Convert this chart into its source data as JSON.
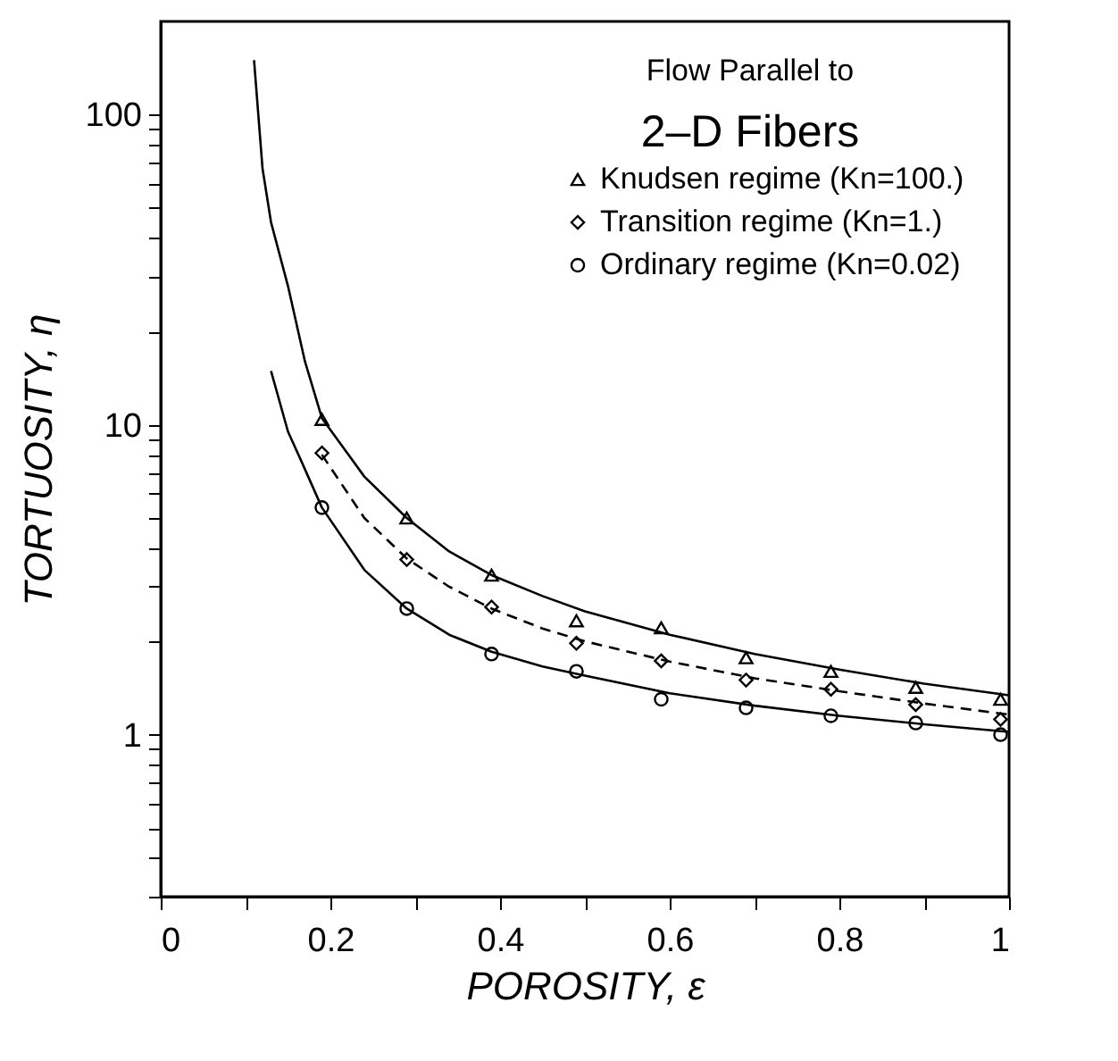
{
  "chart_data": {
    "type": "scatter",
    "title": "Flow Parallel to",
    "subtitle": "2–D Fibers",
    "xlabel": "POROSITY, ε",
    "ylabel": "TORTUOSITY, η",
    "log": "y",
    "grid": false,
    "legend": "top right",
    "xlim": [
      0,
      1
    ],
    "ylim": [
      0.3,
      200
    ],
    "xticks": [
      0,
      {
        "value": 0.1,
        "label": null
      },
      0.2,
      {
        "value": 0.3,
        "label": null
      },
      0.4,
      {
        "value": 0.5,
        "label": null
      },
      0.6,
      {
        "value": 0.7,
        "label": null
      },
      0.8,
      {
        "value": 0.9,
        "label": null
      },
      1
    ],
    "yticks": [
      {
        "value": 0.3,
        "label": null
      },
      {
        "value": 0.4,
        "label": null
      },
      {
        "value": 0.5,
        "label": null
      },
      {
        "value": 0.6,
        "label": null
      },
      {
        "value": 0.7,
        "label": null
      },
      {
        "value": 0.8,
        "label": null
      },
      {
        "value": 0.9,
        "label": null
      },
      1,
      {
        "value": 2,
        "label": null
      },
      {
        "value": 3,
        "label": null
      },
      {
        "value": 4,
        "label": null
      },
      {
        "value": 5,
        "label": null
      },
      {
        "value": 6,
        "label": null
      },
      {
        "value": 7,
        "label": null
      },
      {
        "value": 8,
        "label": null
      },
      {
        "value": 9,
        "label": null
      },
      10,
      {
        "value": 20,
        "label": null
      },
      {
        "value": 30,
        "label": null
      },
      {
        "value": 40,
        "label": null
      },
      {
        "value": 50,
        "label": null
      },
      {
        "value": 60,
        "label": null
      },
      {
        "value": 70,
        "label": null
      },
      {
        "value": 80,
        "label": null
      },
      {
        "value": 90,
        "label": null
      },
      100
    ],
    "series": [
      {
        "name": "Knudsen regime (Kn=100.)",
        "type": "scatter",
        "marker": "triangle",
        "color": "#000000",
        "x": [
          0.19,
          0.29,
          0.39,
          0.49,
          0.59,
          0.69,
          0.79,
          0.89,
          0.99
        ],
        "values": [
          10.4,
          5.0,
          3.27,
          2.33,
          2.21,
          1.77,
          1.6,
          1.42,
          1.3
        ]
      },
      {
        "name": "Transition regime (Kn=1.)",
        "type": "scatter",
        "marker": "diamond",
        "color": "#000000",
        "x": [
          0.19,
          0.29,
          0.39,
          0.49,
          0.59,
          0.69,
          0.79,
          0.89,
          0.99
        ],
        "values": [
          8.1,
          3.67,
          2.58,
          1.97,
          1.73,
          1.5,
          1.4,
          1.25,
          1.12
        ]
      },
      {
        "name": "Ordinary regime (Kn=0.02)",
        "type": "scatter",
        "marker": "circle",
        "color": "#000000",
        "x": [
          0.19,
          0.29,
          0.39,
          0.49,
          0.59,
          0.69,
          0.79,
          0.89,
          0.99
        ],
        "values": [
          5.4,
          2.55,
          1.82,
          1.6,
          1.3,
          1.22,
          1.15,
          1.09,
          1.0
        ]
      },
      {
        "type": "line",
        "line_style": "solid",
        "color": "#000000",
        "x": [
          0.11,
          0.12,
          0.13,
          0.15,
          0.17,
          0.19,
          0.24,
          0.29,
          0.34,
          0.39,
          0.45,
          0.5,
          0.6,
          0.7,
          0.8,
          0.9,
          1.0
        ],
        "values": [
          150,
          67,
          45,
          28,
          16,
          10.5,
          6.8,
          5.0,
          3.9,
          3.27,
          2.8,
          2.5,
          2.1,
          1.82,
          1.62,
          1.46,
          1.34
        ]
      },
      {
        "type": "line",
        "line_style": "dashed",
        "color": "#000000",
        "x": [
          0.19,
          0.24,
          0.29,
          0.34,
          0.39,
          0.45,
          0.5,
          0.6,
          0.7,
          0.8,
          0.9,
          1.0
        ],
        "values": [
          8.0,
          5.0,
          3.7,
          3.0,
          2.55,
          2.2,
          2.0,
          1.72,
          1.52,
          1.38,
          1.26,
          1.16
        ]
      },
      {
        "type": "line",
        "line_style": "solid",
        "color": "#000000",
        "x": [
          0.13,
          0.15,
          0.166,
          0.19,
          0.24,
          0.29,
          0.34,
          0.39,
          0.45,
          0.5,
          0.6,
          0.7,
          0.8,
          0.9,
          1.0
        ],
        "values": [
          14.9,
          9.5,
          7.6,
          5.4,
          3.4,
          2.55,
          2.1,
          1.85,
          1.66,
          1.55,
          1.36,
          1.24,
          1.15,
          1.08,
          1.02
        ]
      }
    ]
  }
}
